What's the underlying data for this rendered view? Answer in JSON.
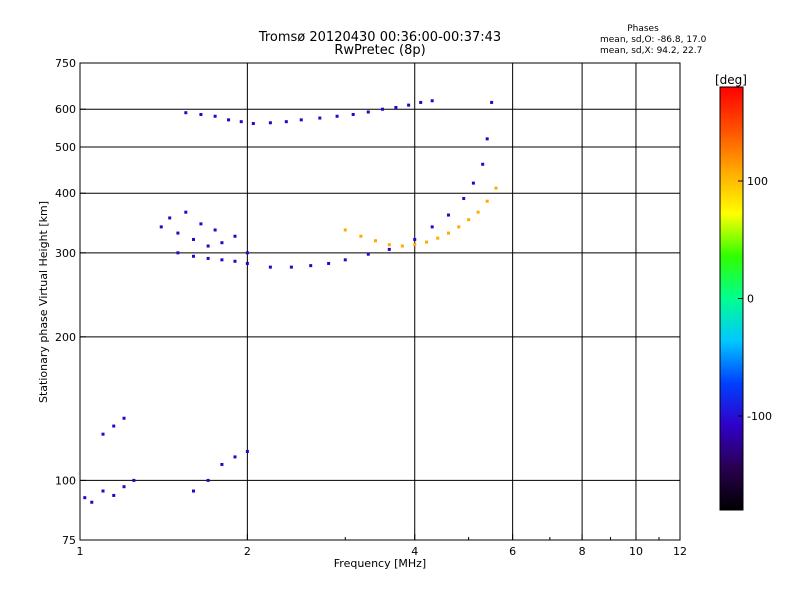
{
  "chart_data": {
    "type": "scatter",
    "title": "Tromsø 20120430 00:36:00-00:37:43",
    "subtitle": "RwPretec (8p)",
    "xlabel": "Frequency [MHz]",
    "ylabel": "Stationary phase Virtual Height [km]",
    "x_scale": "log",
    "y_scale": "log",
    "xlim": [
      1,
      12
    ],
    "ylim": [
      75,
      750
    ],
    "x_ticks": [
      1,
      2,
      4,
      6,
      8,
      10,
      12
    ],
    "y_ticks": [
      75,
      100,
      200,
      300,
      400,
      500,
      600,
      750
    ],
    "grid": true,
    "stats": {
      "heading": "Phases",
      "line1": "mean, sd,O: -86.8, 17.0",
      "line2": "mean, sd,X:  94.2, 22.7"
    },
    "colorbar": {
      "label": "[deg]",
      "range": [
        -180,
        180
      ],
      "ticks": [
        -100,
        0,
        100
      ],
      "palette": [
        "#000000",
        "#2a0050",
        "#3000c8",
        "#0040ff",
        "#00c8ff",
        "#00ff90",
        "#30ff00",
        "#ffff00",
        "#ffaa00",
        "#ff5000",
        "#ff0000"
      ]
    },
    "series": [
      {
        "trace": "O-mode F2 trace (upper)",
        "x": [
          1.55,
          1.65,
          1.75,
          1.85,
          1.95,
          2.05,
          2.2,
          2.35,
          2.5,
          2.7,
          2.9,
          3.1,
          3.3,
          3.5,
          3.7,
          3.9,
          4.1,
          4.3
        ],
        "y": [
          590,
          585,
          580,
          570,
          565,
          560,
          562,
          565,
          570,
          575,
          580,
          585,
          592,
          600,
          605,
          612,
          620,
          625
        ],
        "phase": [
          -95,
          -95,
          -95,
          -95,
          -100,
          -100,
          -100,
          -100,
          -100,
          -100,
          -100,
          -110,
          -120,
          -110,
          -100,
          -100,
          -100,
          -100
        ]
      },
      {
        "trace": "O-mode lower trace",
        "x": [
          1.5,
          1.6,
          1.7,
          1.8,
          1.9,
          2.0,
          2.2,
          2.4,
          2.6,
          2.8,
          3.0,
          3.3,
          3.6,
          4.0,
          4.3,
          4.6,
          4.9,
          5.1,
          5.3,
          5.4,
          5.5
        ],
        "y": [
          300,
          295,
          292,
          290,
          288,
          285,
          280,
          280,
          282,
          285,
          290,
          298,
          305,
          320,
          340,
          360,
          390,
          420,
          460,
          520,
          620
        ],
        "phase": [
          -100,
          -100,
          -100,
          -100,
          -100,
          -100,
          -100,
          -100,
          -100,
          -100,
          -100,
          -100,
          -100,
          -100,
          -100,
          -100,
          -100,
          -100,
          -100,
          -100,
          -100
        ]
      },
      {
        "trace": "O-mode low-frequency spread cluster",
        "x": [
          1.4,
          1.45,
          1.5,
          1.55,
          1.6,
          1.65,
          1.7,
          1.75,
          1.8,
          1.9,
          2.0
        ],
        "y": [
          340,
          355,
          330,
          365,
          320,
          345,
          310,
          335,
          315,
          325,
          300
        ],
        "phase": [
          -100,
          -100,
          -100,
          -100,
          -100,
          -100,
          -100,
          -100,
          -100,
          -100,
          -100
        ]
      },
      {
        "trace": "X-mode trace",
        "x": [
          3.0,
          3.2,
          3.4,
          3.6,
          3.8,
          4.0,
          4.2,
          4.4,
          4.6,
          4.8,
          5.0,
          5.2,
          5.4,
          5.6
        ],
        "y": [
          335,
          325,
          318,
          312,
          310,
          312,
          316,
          322,
          330,
          340,
          352,
          365,
          385,
          410
        ],
        "phase": [
          95,
          95,
          95,
          95,
          95,
          95,
          95,
          95,
          95,
          95,
          95,
          95,
          95,
          95
        ]
      },
      {
        "trace": "Low-height echoes",
        "x": [
          1.02,
          1.05,
          1.1,
          1.15,
          1.2,
          1.25,
          1.1,
          1.15,
          1.2,
          1.6,
          1.7,
          1.8,
          1.9,
          2.0
        ],
        "y": [
          92,
          90,
          95,
          93,
          97,
          100,
          125,
          130,
          135,
          95,
          100,
          108,
          112,
          115
        ],
        "phase": [
          -100,
          -100,
          -100,
          -100,
          -100,
          -100,
          -100,
          -100,
          -100,
          -100,
          -100,
          -100,
          -100,
          -100
        ]
      }
    ]
  }
}
